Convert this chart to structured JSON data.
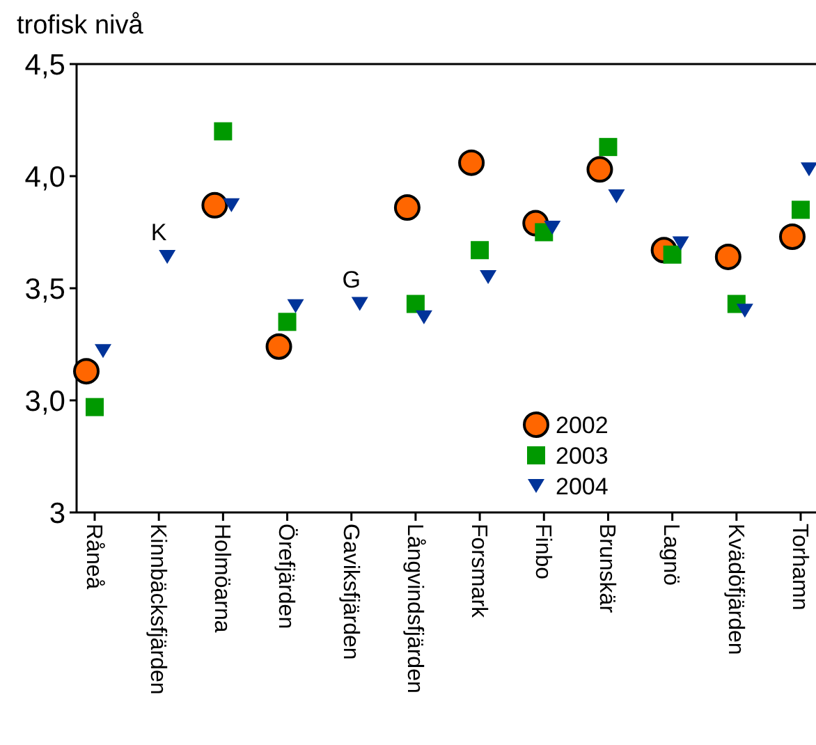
{
  "chart_data": {
    "type": "scatter",
    "ylabel": "trofisk nivå",
    "categories": [
      "Råneå",
      "Kinnbäcksfjärden",
      "Holmöarna",
      "Örefjärden",
      "Gaviksfjärden",
      "Långvindsfjärden",
      "Forsmark",
      "Finbo",
      "Brunskär",
      "Lagnö",
      "Kvädöfjärden",
      "Torhamn"
    ],
    "series": [
      {
        "name": "2002",
        "color": "#ff6600",
        "marker": "circle",
        "values": [
          3.13,
          null,
          3.87,
          3.24,
          null,
          3.86,
          4.06,
          3.79,
          4.03,
          3.67,
          3.64,
          3.73
        ]
      },
      {
        "name": "2003",
        "color": "#009900",
        "marker": "square",
        "values": [
          2.97,
          null,
          4.2,
          3.35,
          null,
          3.43,
          3.67,
          3.75,
          4.13,
          3.65,
          3.43,
          3.85
        ]
      },
      {
        "name": "2004",
        "color": "#003399",
        "marker": "triangle",
        "values": [
          3.22,
          3.64,
          3.87,
          3.42,
          3.43,
          3.37,
          3.55,
          3.77,
          3.91,
          3.7,
          3.4,
          4.03
        ]
      }
    ],
    "ylim": [
      2.5,
      4.5
    ],
    "yticks": [
      {
        "value": 2.5,
        "label": "3"
      },
      {
        "value": 3,
        "label": "3,0"
      },
      {
        "value": 3.5,
        "label": "3,5"
      },
      {
        "value": 4,
        "label": "4,0"
      },
      {
        "value": 4.5,
        "label": "4,5"
      }
    ],
    "annotations": [
      {
        "text": "K",
        "x": "Kinnbäcksfjärden",
        "y": 3.64
      },
      {
        "text": "G",
        "x": "Gaviksfjärden",
        "y": 3.43
      }
    ],
    "legend": "bottom",
    "grid": false
  }
}
